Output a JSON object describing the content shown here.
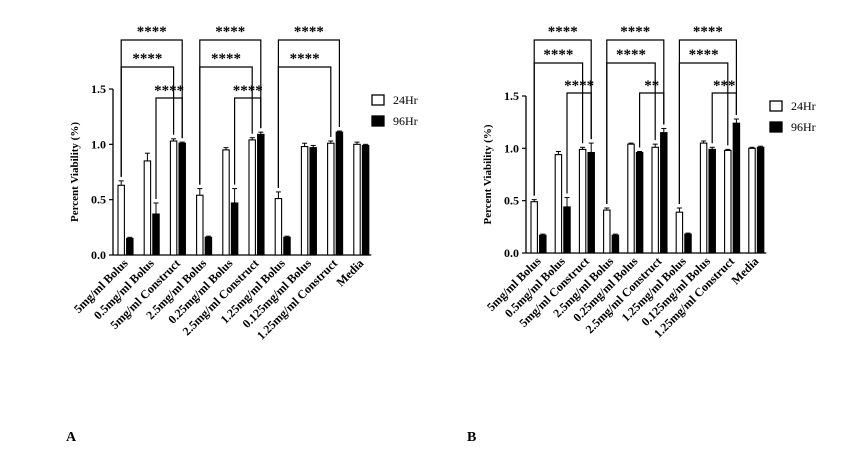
{
  "panels": [
    {
      "label": "A"
    },
    {
      "label": "B"
    }
  ],
  "chart_data": [
    {
      "type": "bar",
      "panel": "A",
      "title": "",
      "xlabel": "",
      "ylabel": "Percent Viability (%)",
      "ylim": [
        0,
        1.5
      ],
      "yticks": [
        "0.0",
        "0.5",
        "1.0",
        "1.5"
      ],
      "categories": [
        "5mg/ml Bolus",
        "0.5mg/ml Bolus",
        "5mg/ml Construct",
        "2.5mg/ml Bolus",
        "0.25mg/ml Bolus",
        "2.5mg/ml Construct",
        "1.25mg/ml Bolus",
        "0.125mg/ml Bolus",
        "1.25mg/ml Construct",
        "Media"
      ],
      "series": [
        {
          "name": "24Hr",
          "fill": "#ffffff",
          "values": [
            0.63,
            0.85,
            1.03,
            0.54,
            0.95,
            1.04,
            0.51,
            0.98,
            1.01,
            1.0
          ],
          "errors": [
            0.04,
            0.07,
            0.02,
            0.06,
            0.02,
            0.02,
            0.06,
            0.03,
            0.02,
            0.02
          ]
        },
        {
          "name": "96Hr",
          "fill": "#000000",
          "values": [
            0.15,
            0.37,
            1.01,
            0.16,
            0.47,
            1.09,
            0.16,
            0.97,
            1.11,
            0.99
          ],
          "errors": [
            0.01,
            0.1,
            0.01,
            0.01,
            0.13,
            0.02,
            0.01,
            0.02,
            0.01,
            0.01
          ]
        }
      ],
      "legend": "right",
      "significance": [
        {
          "from": [
            0,
            0
          ],
          "to": [
            2,
            1
          ],
          "label": "****"
        },
        {
          "from": [
            0,
            0
          ],
          "to": [
            2,
            0
          ],
          "label": "****"
        },
        {
          "from": [
            1,
            1
          ],
          "to": [
            2,
            1
          ],
          "label": "****"
        },
        {
          "from": [
            3,
            0
          ],
          "to": [
            5,
            1
          ],
          "label": "****"
        },
        {
          "from": [
            3,
            0
          ],
          "to": [
            5,
            0
          ],
          "label": "****"
        },
        {
          "from": [
            4,
            1
          ],
          "to": [
            5,
            1
          ],
          "label": "****"
        },
        {
          "from": [
            6,
            0
          ],
          "to": [
            8,
            1
          ],
          "label": "****"
        },
        {
          "from": [
            6,
            0
          ],
          "to": [
            8,
            0
          ],
          "label": "****"
        }
      ]
    },
    {
      "type": "bar",
      "panel": "B",
      "title": "",
      "xlabel": "",
      "ylabel": "Percent Viability (%)",
      "ylim": [
        0,
        1.5
      ],
      "yticks": [
        "0.0",
        "0.5",
        "1.0",
        "1.5"
      ],
      "categories": [
        "5mg/ml Bolus",
        "0.5mg/ml Bolus",
        "5mg/ml Construct",
        "2.5mg/ml Bolus",
        "0.25mg/ml Bolus",
        "2.5mg/ml Construct",
        "1.25mg/ml Bolus",
        "0.125mg/ml Bolus",
        "1.25mg/ml Construct",
        "Media"
      ],
      "series": [
        {
          "name": "24Hr",
          "fill": "#ffffff",
          "values": [
            0.49,
            0.94,
            0.99,
            0.41,
            1.04,
            1.01,
            0.39,
            1.05,
            0.98,
            1.0
          ],
          "errors": [
            0.02,
            0.03,
            0.02,
            0.02,
            0.01,
            0.03,
            0.04,
            0.02,
            0.01,
            0.01
          ]
        },
        {
          "name": "96Hr",
          "fill": "#000000",
          "values": [
            0.17,
            0.44,
            0.96,
            0.17,
            0.96,
            1.15,
            0.18,
            0.99,
            1.24,
            1.01
          ],
          "errors": [
            0.01,
            0.09,
            0.09,
            0.01,
            0.01,
            0.04,
            0.01,
            0.02,
            0.04,
            0.01
          ]
        }
      ],
      "legend": "right",
      "significance": [
        {
          "from": [
            0,
            0
          ],
          "to": [
            2,
            1
          ],
          "label": "****"
        },
        {
          "from": [
            0,
            0
          ],
          "to": [
            2,
            0
          ],
          "label": "****"
        },
        {
          "from": [
            1,
            1
          ],
          "to": [
            2,
            1
          ],
          "label": "****"
        },
        {
          "from": [
            3,
            0
          ],
          "to": [
            5,
            1
          ],
          "label": "****"
        },
        {
          "from": [
            3,
            0
          ],
          "to": [
            5,
            0
          ],
          "label": "****"
        },
        {
          "from": [
            4,
            1
          ],
          "to": [
            5,
            1
          ],
          "label": "**"
        },
        {
          "from": [
            6,
            0
          ],
          "to": [
            8,
            1
          ],
          "label": "****"
        },
        {
          "from": [
            6,
            0
          ],
          "to": [
            8,
            0
          ],
          "label": "****"
        },
        {
          "from": [
            7,
            1
          ],
          "to": [
            8,
            1
          ],
          "label": "***"
        }
      ]
    }
  ]
}
